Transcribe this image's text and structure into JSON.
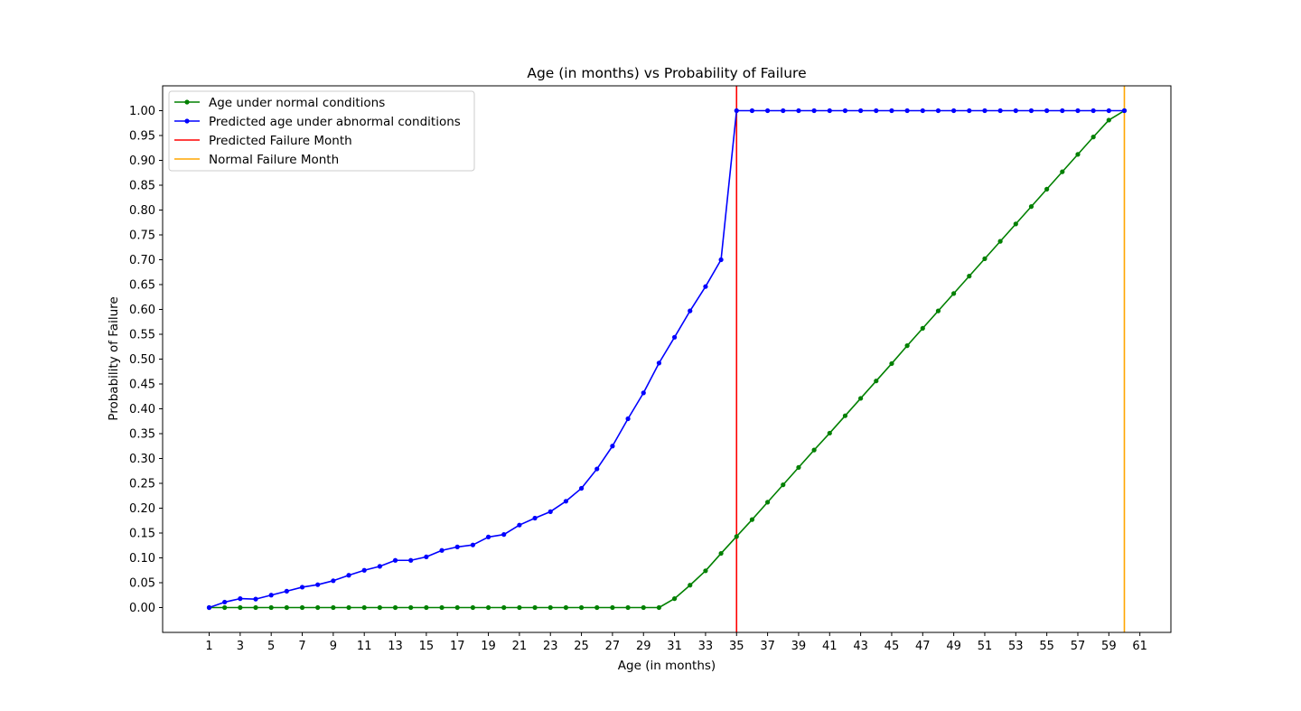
{
  "chart_data": {
    "type": "line",
    "title": "Age (in months) vs Probability of Failure",
    "xlabel": "Age (in months)",
    "ylabel": "Probability of Failure",
    "xlim": [
      -2,
      63
    ],
    "ylim": [
      -0.05,
      1.05
    ],
    "x_ticks": [
      "1",
      "3",
      "5",
      "7",
      "9",
      "11",
      "13",
      "15",
      "17",
      "19",
      "21",
      "23",
      "25",
      "27",
      "29",
      "31",
      "33",
      "35",
      "37",
      "39",
      "41",
      "43",
      "45",
      "47",
      "49",
      "51",
      "53",
      "55",
      "57",
      "59",
      "61"
    ],
    "y_ticks": [
      "0.00",
      "0.05",
      "0.10",
      "0.15",
      "0.20",
      "0.25",
      "0.30",
      "0.35",
      "0.40",
      "0.45",
      "0.50",
      "0.55",
      "0.60",
      "0.65",
      "0.70",
      "0.75",
      "0.80",
      "0.85",
      "0.90",
      "0.95",
      "1.00"
    ],
    "grid": false,
    "legend_position": "top-left",
    "x": [
      1,
      2,
      3,
      4,
      5,
      6,
      7,
      8,
      9,
      10,
      11,
      12,
      13,
      14,
      15,
      16,
      17,
      18,
      19,
      20,
      21,
      22,
      23,
      24,
      25,
      26,
      27,
      28,
      29,
      30,
      31,
      32,
      33,
      34,
      35,
      36,
      37,
      38,
      39,
      40,
      41,
      42,
      43,
      44,
      45,
      46,
      47,
      48,
      49,
      50,
      51,
      52,
      53,
      54,
      55,
      56,
      57,
      58,
      59,
      60
    ],
    "series": [
      {
        "name": "Age under normal conditions",
        "color": "#008000",
        "marker": "dot",
        "values": [
          0,
          0,
          0,
          0,
          0,
          0,
          0,
          0,
          0,
          0,
          0,
          0,
          0,
          0,
          0,
          0,
          0,
          0,
          0,
          0,
          0,
          0,
          0,
          0,
          0,
          0,
          0,
          0,
          0,
          0,
          0.018,
          0.045,
          0.074,
          0.109,
          0.143,
          0.177,
          0.212,
          0.247,
          0.282,
          0.317,
          0.351,
          0.386,
          0.421,
          0.456,
          0.491,
          0.527,
          0.562,
          0.597,
          0.632,
          0.667,
          0.702,
          0.737,
          0.772,
          0.807,
          0.842,
          0.877,
          0.912,
          0.947,
          0.981,
          1.0
        ]
      },
      {
        "name": "Predicted age under abnormal conditions",
        "color": "#0000ff",
        "marker": "dot",
        "values": [
          0,
          0.011,
          0.018,
          0.017,
          0.025,
          0.033,
          0.041,
          0.046,
          0.054,
          0.065,
          0.075,
          0.083,
          0.095,
          0.095,
          0.102,
          0.115,
          0.122,
          0.126,
          0.142,
          0.147,
          0.166,
          0.18,
          0.193,
          0.214,
          0.24,
          0.279,
          0.325,
          0.38,
          0.432,
          0.492,
          0.544,
          0.597,
          0.646,
          0.7,
          1.0,
          1.0,
          1.0,
          1.0,
          1.0,
          1.0,
          1.0,
          1.0,
          1.0,
          1.0,
          1.0,
          1.0,
          1.0,
          1.0,
          1.0,
          1.0,
          1.0,
          1.0,
          1.0,
          1.0,
          1.0,
          1.0,
          1.0,
          1.0,
          1.0,
          1.0
        ]
      }
    ],
    "vertical_lines": [
      {
        "name": "Predicted Failure Month",
        "x": 35,
        "color": "#ff0000"
      },
      {
        "name": "Normal Failure Month",
        "x": 60,
        "color": "#ffa500"
      }
    ]
  }
}
